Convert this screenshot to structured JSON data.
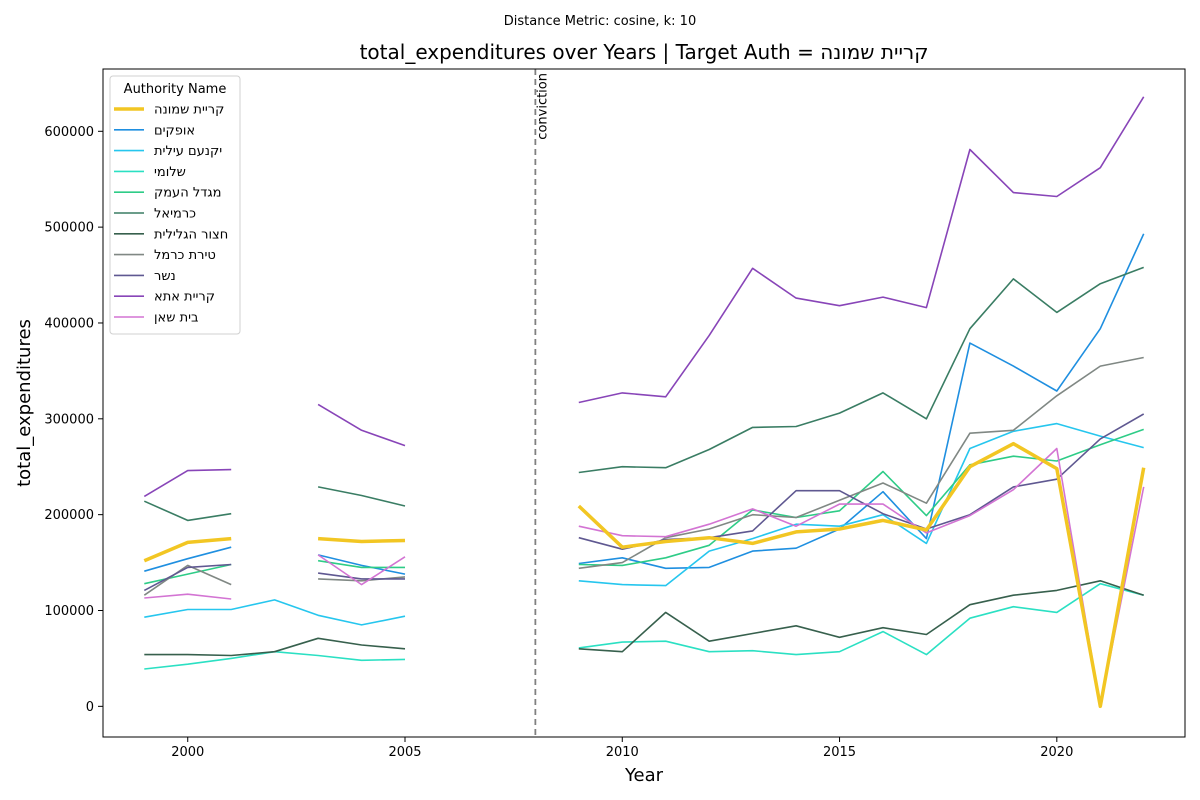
{
  "supertitle": "Distance Metric: cosine, k: 10",
  "chart_data": {
    "type": "line",
    "title": "total_expenditures over Years | Target Auth = קריית שמונה",
    "xlabel": "Year",
    "ylabel": "total_expenditures",
    "xlim": [
      1998.05,
      2022.95
    ],
    "ylim": [
      -32000,
      665000
    ],
    "xticks": [
      2000,
      2005,
      2010,
      2015,
      2020
    ],
    "yticks": [
      0,
      100000,
      200000,
      300000,
      400000,
      500000,
      600000
    ],
    "grid": false,
    "legend": {
      "title": "Authority Name",
      "placement": "top-left"
    },
    "annotation": {
      "x": 2008,
      "text": "conviction",
      "style": "dashed vertical line"
    },
    "x": [
      1999,
      2000,
      2001,
      2002,
      2003,
      2004,
      2005,
      2006,
      2007,
      2008,
      2009,
      2010,
      2011,
      2012,
      2013,
      2014,
      2015,
      2016,
      2017,
      2018,
      2019,
      2020,
      2021,
      2022
    ],
    "series": [
      {
        "name": "קריית שמונה",
        "color": "#f2c623",
        "width": 3.5,
        "values": [
          152000,
          171000,
          175000,
          null,
          175000,
          172000,
          173000,
          null,
          null,
          null,
          209000,
          166000,
          172000,
          176000,
          170000,
          182000,
          185000,
          194000,
          184000,
          250000,
          274000,
          248000,
          0,
          249000
        ]
      },
      {
        "name": "אופקים",
        "color": "#1f8fe0",
        "width": 1.6,
        "values": [
          141000,
          154000,
          166000,
          null,
          158000,
          147000,
          138000,
          null,
          null,
          null,
          149000,
          155000,
          144000,
          145000,
          162000,
          165000,
          185000,
          224000,
          175000,
          379000,
          355000,
          329000,
          394000,
          493000
        ]
      },
      {
        "name": "יקנעם עילית",
        "color": "#26c6ee",
        "width": 1.6,
        "values": [
          93000,
          101000,
          101000,
          111000,
          95000,
          85000,
          94000,
          null,
          null,
          null,
          131000,
          127000,
          126000,
          162000,
          175000,
          190000,
          188000,
          200000,
          170000,
          269000,
          287000,
          295000,
          282000,
          270000
        ]
      },
      {
        "name": "שלומי",
        "color": "#2be0c3",
        "width": 1.6,
        "values": [
          39000,
          44000,
          50000,
          57000,
          53000,
          48000,
          49000,
          null,
          null,
          null,
          61000,
          67000,
          68000,
          57000,
          58000,
          54000,
          57000,
          78000,
          54000,
          92000,
          104000,
          98000,
          128000,
          116000
        ]
      },
      {
        "name": "מגדל העמק",
        "color": "#2ecc87",
        "width": 1.6,
        "values": [
          128000,
          138000,
          148000,
          null,
          152000,
          145000,
          145000,
          null,
          null,
          null,
          148000,
          147000,
          155000,
          168000,
          205000,
          197000,
          204000,
          245000,
          199000,
          252000,
          261000,
          256000,
          273000,
          289000
        ]
      },
      {
        "name": "כרמיאל",
        "color": "#3a7d64",
        "width": 1.6,
        "values": [
          214000,
          194000,
          201000,
          null,
          229000,
          220000,
          209000,
          null,
          null,
          null,
          244000,
          250000,
          249000,
          268000,
          291000,
          292000,
          306000,
          327000,
          300000,
          394000,
          446000,
          411000,
          441000,
          458000
        ]
      },
      {
        "name": "חצור הגלילית",
        "color": "#37604d",
        "width": 1.6,
        "values": [
          54000,
          54000,
          53000,
          57000,
          71000,
          64000,
          60000,
          null,
          null,
          null,
          60000,
          57000,
          98000,
          68000,
          76000,
          84000,
          72000,
          82000,
          75000,
          106000,
          116000,
          121000,
          131000,
          116000
        ]
      },
      {
        "name": "טירת כרמל",
        "color": "#808884",
        "width": 1.6,
        "values": [
          116000,
          147000,
          127000,
          null,
          133000,
          131000,
          135000,
          null,
          null,
          null,
          144000,
          150000,
          176000,
          185000,
          200000,
          197000,
          215000,
          233000,
          212000,
          285000,
          288000,
          324000,
          355000,
          364000
        ]
      },
      {
        "name": "נשר",
        "color": "#5f5891",
        "width": 1.6,
        "values": [
          121000,
          145000,
          148000,
          null,
          139000,
          133000,
          133000,
          null,
          null,
          null,
          176000,
          164000,
          174000,
          176000,
          183000,
          225000,
          225000,
          201000,
          185000,
          200000,
          229000,
          237000,
          279000,
          305000
        ]
      },
      {
        "name": "קריית אתא",
        "color": "#8845b8",
        "width": 1.6,
        "values": [
          219000,
          246000,
          247000,
          null,
          315000,
          288000,
          272000,
          null,
          null,
          null,
          317000,
          327000,
          323000,
          387000,
          457000,
          426000,
          418000,
          427000,
          416000,
          581000,
          536000,
          532000,
          562000,
          636000
        ]
      },
      {
        "name": "בית שאן",
        "color": "#d374d3",
        "width": 1.6,
        "values": [
          113000,
          117000,
          112000,
          null,
          158000,
          127000,
          156000,
          null,
          null,
          null,
          188000,
          178000,
          177000,
          190000,
          206000,
          188000,
          211000,
          211000,
          181000,
          199000,
          226000,
          269000,
          0,
          229000
        ]
      }
    ]
  }
}
